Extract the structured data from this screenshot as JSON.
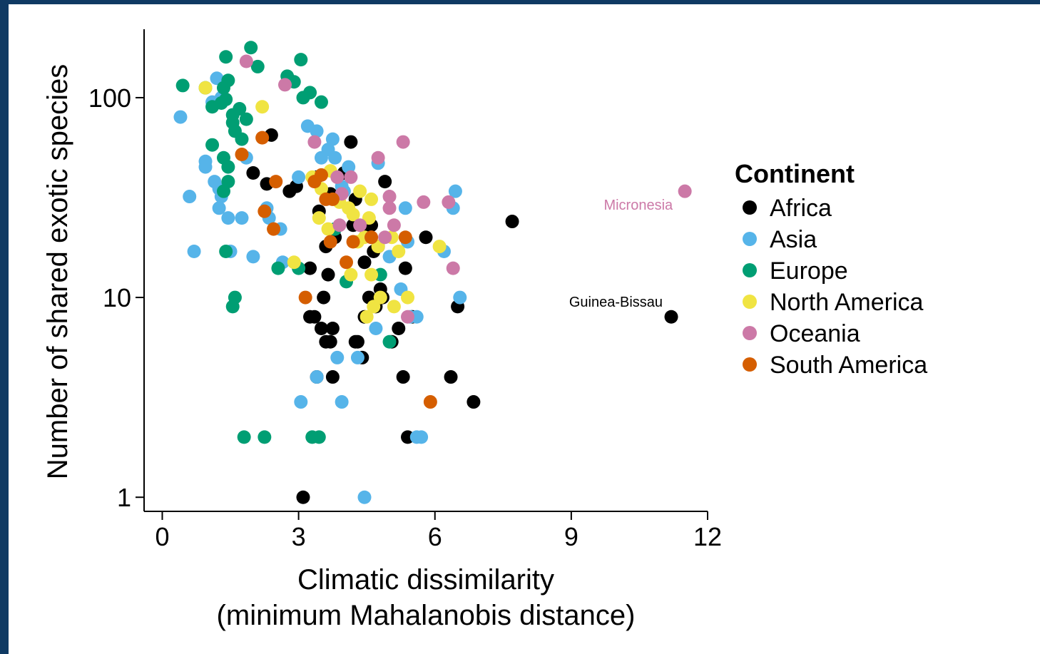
{
  "chart_data": {
    "type": "scatter",
    "xlabel": "Climatic dissimilarity",
    "xlabel_line2": "(minimum Mahalanobis distance)",
    "ylabel": "Number of shared exotic species",
    "xlim": [
      -0.4,
      12
    ],
    "ylim": [
      0.85,
      220
    ],
    "y_scale": "log",
    "x_ticks": [
      0,
      3,
      6,
      9,
      12
    ],
    "x_tick_labels": [
      "0",
      "3",
      "6",
      "9",
      "12"
    ],
    "y_ticks": [
      1,
      10,
      100
    ],
    "y_tick_labels": [
      "1",
      "10",
      "100"
    ],
    "grid": false,
    "legend": {
      "title": "Continent",
      "position": "right",
      "items": [
        {
          "name": "Africa",
          "color": "#000000"
        },
        {
          "name": "Asia",
          "color": "#56b4e9"
        },
        {
          "name": "Europe",
          "color": "#009e73"
        },
        {
          "name": "North America",
          "color": "#f0e442"
        },
        {
          "name": "Oceania",
          "color": "#cc79a7"
        },
        {
          "name": "South America",
          "color": "#d55e00"
        }
      ]
    },
    "annotations": [
      {
        "text": "Micronesia",
        "x": 11.5,
        "y": 34,
        "color": "#cc79a7"
      },
      {
        "text": "Guinea-Bissau",
        "x": 11.2,
        "y": 8,
        "color": "#000000"
      }
    ],
    "series": [
      {
        "name": "Africa",
        "color": "#000000",
        "points": [
          [
            2.4,
            65
          ],
          [
            2.0,
            42
          ],
          [
            2.3,
            37
          ],
          [
            2.8,
            34
          ],
          [
            2.95,
            36
          ],
          [
            3.4,
            40
          ],
          [
            3.7,
            33
          ],
          [
            3.45,
            27
          ],
          [
            3.6,
            18
          ],
          [
            3.8,
            20
          ],
          [
            4.0,
            42
          ],
          [
            4.15,
            60
          ],
          [
            4.25,
            31
          ],
          [
            4.2,
            23
          ],
          [
            4.5,
            21
          ],
          [
            4.6,
            23
          ],
          [
            4.65,
            17
          ],
          [
            4.75,
            18
          ],
          [
            4.9,
            38
          ],
          [
            4.8,
            11
          ],
          [
            4.85,
            10
          ],
          [
            4.7,
            9
          ],
          [
            4.55,
            10
          ],
          [
            4.45,
            15
          ],
          [
            4.3,
            6
          ],
          [
            4.4,
            5
          ],
          [
            4.45,
            8
          ],
          [
            3.25,
            14
          ],
          [
            3.65,
            13
          ],
          [
            3.55,
            10
          ],
          [
            3.25,
            8
          ],
          [
            3.35,
            8
          ],
          [
            3.5,
            7
          ],
          [
            3.75,
            7
          ],
          [
            3.6,
            6
          ],
          [
            3.7,
            6
          ],
          [
            3.75,
            4
          ],
          [
            3.4,
            4
          ],
          [
            4.25,
            6
          ],
          [
            5.05,
            6
          ],
          [
            5.2,
            7
          ],
          [
            5.35,
            14
          ],
          [
            5.5,
            8
          ],
          [
            5.3,
            4
          ],
          [
            5.4,
            2
          ],
          [
            5.8,
            20
          ],
          [
            6.35,
            4
          ],
          [
            6.5,
            9
          ],
          [
            6.85,
            3
          ],
          [
            7.7,
            24
          ],
          [
            3.1,
            1
          ],
          [
            11.2,
            8
          ]
        ]
      },
      {
        "name": "Asia",
        "color": "#56b4e9",
        "points": [
          [
            0.4,
            80
          ],
          [
            1.2,
            125
          ],
          [
            1.3,
            100
          ],
          [
            1.1,
            95
          ],
          [
            0.95,
            48
          ],
          [
            0.95,
            45
          ],
          [
            1.15,
            38
          ],
          [
            1.25,
            35
          ],
          [
            1.3,
            32
          ],
          [
            1.25,
            28
          ],
          [
            1.45,
            25
          ],
          [
            1.75,
            25
          ],
          [
            1.85,
            50
          ],
          [
            1.5,
            17
          ],
          [
            0.7,
            17
          ],
          [
            0.6,
            32
          ],
          [
            2.0,
            16
          ],
          [
            2.3,
            28
          ],
          [
            2.35,
            25
          ],
          [
            2.6,
            22
          ],
          [
            2.65,
            15
          ],
          [
            3.0,
            40
          ],
          [
            3.2,
            72
          ],
          [
            3.4,
            68
          ],
          [
            3.5,
            50
          ],
          [
            3.65,
            55
          ],
          [
            3.75,
            62
          ],
          [
            3.8,
            50
          ],
          [
            3.95,
            36
          ],
          [
            4.1,
            45
          ],
          [
            4.0,
            34
          ],
          [
            4.75,
            47
          ],
          [
            5.0,
            16
          ],
          [
            5.25,
            11
          ],
          [
            5.35,
            28
          ],
          [
            5.4,
            19
          ],
          [
            5.6,
            8
          ],
          [
            5.45,
            8
          ],
          [
            6.2,
            17
          ],
          [
            6.45,
            34
          ],
          [
            6.4,
            28
          ],
          [
            6.55,
            10
          ],
          [
            3.4,
            4
          ],
          [
            3.85,
            5
          ],
          [
            4.3,
            5
          ],
          [
            4.7,
            7
          ],
          [
            3.05,
            3
          ],
          [
            3.95,
            3
          ],
          [
            5.6,
            2
          ],
          [
            5.7,
            2
          ],
          [
            4.45,
            1
          ]
        ]
      },
      {
        "name": "Europe",
        "color": "#009e73",
        "points": [
          [
            0.45,
            115
          ],
          [
            0.95,
            112
          ],
          [
            1.4,
            160
          ],
          [
            1.95,
            178
          ],
          [
            2.1,
            143
          ],
          [
            1.35,
            112
          ],
          [
            1.45,
            122
          ],
          [
            1.1,
            90
          ],
          [
            1.3,
            94
          ],
          [
            1.4,
            98
          ],
          [
            1.55,
            75
          ],
          [
            1.7,
            88
          ],
          [
            1.55,
            82
          ],
          [
            1.85,
            78
          ],
          [
            1.6,
            68
          ],
          [
            1.75,
            62
          ],
          [
            1.1,
            58
          ],
          [
            1.35,
            50
          ],
          [
            1.45,
            45
          ],
          [
            1.45,
            38
          ],
          [
            1.35,
            34
          ],
          [
            1.4,
            17
          ],
          [
            1.6,
            10
          ],
          [
            1.55,
            9
          ],
          [
            2.75,
            128
          ],
          [
            2.9,
            120
          ],
          [
            3.05,
            155
          ],
          [
            3.1,
            100
          ],
          [
            3.25,
            106
          ],
          [
            3.5,
            95
          ],
          [
            2.55,
            14
          ],
          [
            3.0,
            14
          ],
          [
            3.8,
            22
          ],
          [
            4.05,
            12
          ],
          [
            4.8,
            13
          ],
          [
            5.0,
            6
          ],
          [
            1.8,
            2
          ],
          [
            2.25,
            2
          ],
          [
            3.3,
            2
          ],
          [
            3.45,
            2
          ]
        ]
      },
      {
        "name": "North America",
        "color": "#f0e442",
        "points": [
          [
            0.95,
            112
          ],
          [
            2.2,
            90
          ],
          [
            3.3,
            40
          ],
          [
            3.5,
            35
          ],
          [
            3.45,
            25
          ],
          [
            3.65,
            22
          ],
          [
            3.7,
            43
          ],
          [
            3.9,
            30
          ],
          [
            4.2,
            26
          ],
          [
            4.1,
            28
          ],
          [
            4.35,
            34
          ],
          [
            4.55,
            25
          ],
          [
            4.6,
            31
          ],
          [
            4.45,
            20
          ],
          [
            4.3,
            19
          ],
          [
            4.6,
            13
          ],
          [
            4.75,
            18
          ],
          [
            4.8,
            10
          ],
          [
            4.65,
            9
          ],
          [
            4.5,
            8
          ],
          [
            4.15,
            13
          ],
          [
            5.05,
            20
          ],
          [
            5.2,
            17
          ],
          [
            5.4,
            10
          ],
          [
            5.1,
            9
          ],
          [
            6.1,
            18
          ],
          [
            2.9,
            15
          ]
        ]
      },
      {
        "name": "Oceania",
        "color": "#cc79a7",
        "points": [
          [
            1.85,
            152
          ],
          [
            2.7,
            116
          ],
          [
            3.35,
            60
          ],
          [
            3.85,
            40
          ],
          [
            4.15,
            40
          ],
          [
            3.95,
            33
          ],
          [
            3.9,
            23
          ],
          [
            4.35,
            23
          ],
          [
            4.6,
            20
          ],
          [
            4.9,
            20
          ],
          [
            5.0,
            32
          ],
          [
            5.0,
            28
          ],
          [
            5.1,
            23
          ],
          [
            4.75,
            50
          ],
          [
            5.3,
            60
          ],
          [
            5.75,
            30
          ],
          [
            6.3,
            30
          ],
          [
            6.4,
            14
          ],
          [
            5.4,
            8
          ],
          [
            11.5,
            34
          ]
        ]
      },
      {
        "name": "South America",
        "color": "#d55e00",
        "points": [
          [
            2.2,
            63
          ],
          [
            1.75,
            52
          ],
          [
            2.5,
            38
          ],
          [
            2.25,
            27
          ],
          [
            2.45,
            22
          ],
          [
            3.35,
            38
          ],
          [
            3.5,
            41
          ],
          [
            3.6,
            31
          ],
          [
            3.75,
            31
          ],
          [
            3.7,
            19
          ],
          [
            4.05,
            15
          ],
          [
            4.2,
            19
          ],
          [
            4.6,
            20
          ],
          [
            5.35,
            20
          ],
          [
            3.15,
            10
          ],
          [
            5.9,
            3
          ]
        ]
      }
    ]
  }
}
